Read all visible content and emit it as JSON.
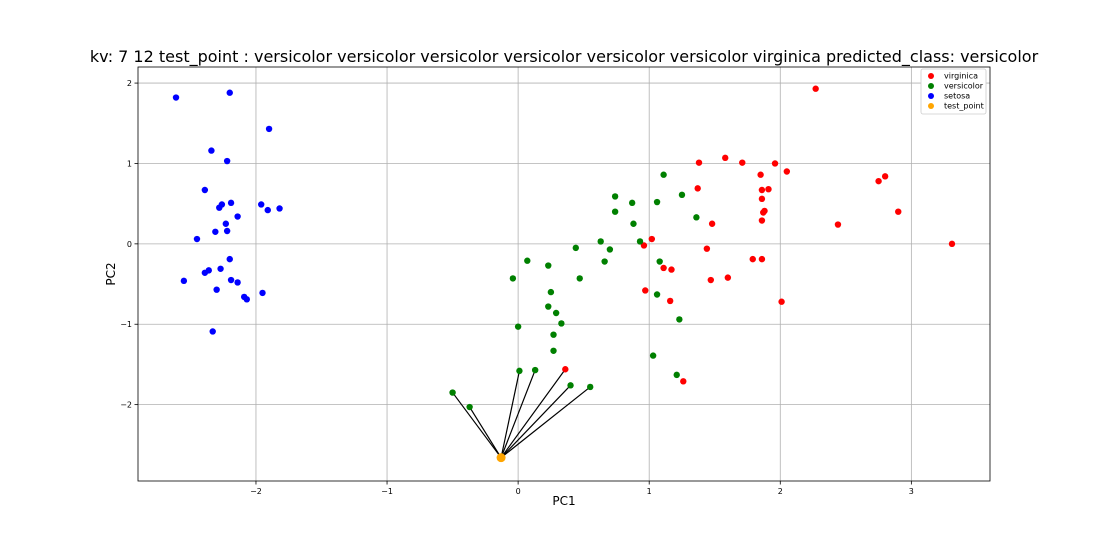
{
  "chart_data": {
    "type": "scatter",
    "title": "kv: 7 12 test_point : versicolor versicolor versicolor versicolor versicolor versicolor virginica   predicted_class: versicolor",
    "xlabel": "PC1",
    "ylabel": "PC2",
    "xlim": [
      -2.9,
      3.6
    ],
    "ylim": [
      -2.95,
      2.2
    ],
    "xticks": [
      -2,
      -1,
      0,
      1,
      2,
      3
    ],
    "yticks": [
      -2,
      -1,
      0,
      1,
      2
    ],
    "xtick_labels": [
      "−2",
      "−1",
      "0",
      "1",
      "2",
      "3"
    ],
    "ytick_labels": [
      "−2",
      "−1",
      "0",
      "1",
      "2"
    ],
    "grid": true,
    "legend_position": "top-right",
    "series": [
      {
        "name": "virginica",
        "color": "#ff0000",
        "points": [
          [
            2.27,
            1.93
          ],
          [
            1.58,
            1.07
          ],
          [
            1.38,
            1.01
          ],
          [
            1.71,
            1.01
          ],
          [
            1.96,
            1.0
          ],
          [
            2.05,
            0.9
          ],
          [
            1.85,
            0.86
          ],
          [
            2.75,
            0.78
          ],
          [
            2.8,
            0.84
          ],
          [
            1.86,
            0.67
          ],
          [
            1.91,
            0.68
          ],
          [
            1.37,
            0.69
          ],
          [
            1.86,
            0.56
          ],
          [
            2.9,
            0.4
          ],
          [
            1.87,
            0.39
          ],
          [
            1.88,
            0.41
          ],
          [
            1.86,
            0.29
          ],
          [
            2.44,
            0.24
          ],
          [
            1.48,
            0.25
          ],
          [
            1.02,
            0.06
          ],
          [
            3.31,
            0.0
          ],
          [
            0.96,
            -0.02
          ],
          [
            1.44,
            -0.06
          ],
          [
            1.79,
            -0.19
          ],
          [
            1.86,
            -0.19
          ],
          [
            1.11,
            -0.3
          ],
          [
            1.17,
            -0.32
          ],
          [
            1.6,
            -0.42
          ],
          [
            1.47,
            -0.45
          ],
          [
            0.97,
            -0.58
          ],
          [
            1.16,
            -0.71
          ],
          [
            2.01,
            -0.72
          ],
          [
            0.36,
            -1.56
          ],
          [
            1.26,
            -1.71
          ]
        ]
      },
      {
        "name": "versicolor",
        "color": "#008000",
        "points": [
          [
            1.11,
            0.86
          ],
          [
            0.74,
            0.59
          ],
          [
            1.25,
            0.61
          ],
          [
            0.87,
            0.51
          ],
          [
            1.06,
            0.52
          ],
          [
            0.74,
            0.4
          ],
          [
            1.36,
            0.33
          ],
          [
            0.88,
            0.25
          ],
          [
            0.93,
            0.03
          ],
          [
            0.63,
            0.03
          ],
          [
            0.44,
            -0.05
          ],
          [
            0.7,
            -0.07
          ],
          [
            0.07,
            -0.21
          ],
          [
            0.66,
            -0.22
          ],
          [
            1.08,
            -0.22
          ],
          [
            0.23,
            -0.27
          ],
          [
            -0.04,
            -0.43
          ],
          [
            0.47,
            -0.43
          ],
          [
            0.25,
            -0.6
          ],
          [
            1.06,
            -0.63
          ],
          [
            0.23,
            -0.78
          ],
          [
            0.29,
            -0.86
          ],
          [
            0.33,
            -0.99
          ],
          [
            0.0,
            -1.03
          ],
          [
            1.23,
            -0.94
          ],
          [
            0.27,
            -1.13
          ],
          [
            0.27,
            -1.33
          ],
          [
            1.03,
            -1.39
          ],
          [
            0.01,
            -1.58
          ],
          [
            0.13,
            -1.57
          ],
          [
            1.21,
            -1.63
          ],
          [
            0.4,
            -1.76
          ],
          [
            0.55,
            -1.78
          ],
          [
            -0.5,
            -1.85
          ],
          [
            -0.37,
            -2.03
          ]
        ]
      },
      {
        "name": "setosa",
        "color": "#0000ff",
        "points": [
          [
            -2.61,
            1.82
          ],
          [
            -2.2,
            1.88
          ],
          [
            -1.9,
            1.43
          ],
          [
            -2.34,
            1.16
          ],
          [
            -2.22,
            1.03
          ],
          [
            -2.39,
            0.67
          ],
          [
            -2.19,
            0.51
          ],
          [
            -2.26,
            0.49
          ],
          [
            -2.28,
            0.45
          ],
          [
            -1.96,
            0.49
          ],
          [
            -1.91,
            0.42
          ],
          [
            -1.82,
            0.44
          ],
          [
            -2.14,
            0.34
          ],
          [
            -2.23,
            0.25
          ],
          [
            -2.31,
            0.15
          ],
          [
            -2.22,
            0.16
          ],
          [
            -2.45,
            0.06
          ],
          [
            -2.2,
            -0.19
          ],
          [
            -2.27,
            -0.31
          ],
          [
            -2.36,
            -0.33
          ],
          [
            -2.39,
            -0.36
          ],
          [
            -2.55,
            -0.46
          ],
          [
            -2.19,
            -0.45
          ],
          [
            -2.14,
            -0.48
          ],
          [
            -2.3,
            -0.57
          ],
          [
            -1.95,
            -0.61
          ],
          [
            -2.09,
            -0.66
          ],
          [
            -2.07,
            -0.69
          ],
          [
            -2.33,
            -1.09
          ]
        ]
      },
      {
        "name": "test_point",
        "color": "#ffa500",
        "points": [
          [
            -0.13,
            -2.66
          ]
        ]
      }
    ],
    "neighbor_lines_from": [
      -0.13,
      -2.66
    ],
    "neighbor_lines_to": [
      [
        -0.5,
        -1.85
      ],
      [
        -0.37,
        -2.03
      ],
      [
        0.01,
        -1.58
      ],
      [
        0.13,
        -1.57
      ],
      [
        0.36,
        -1.56
      ],
      [
        0.4,
        -1.76
      ],
      [
        0.55,
        -1.78
      ]
    ]
  }
}
